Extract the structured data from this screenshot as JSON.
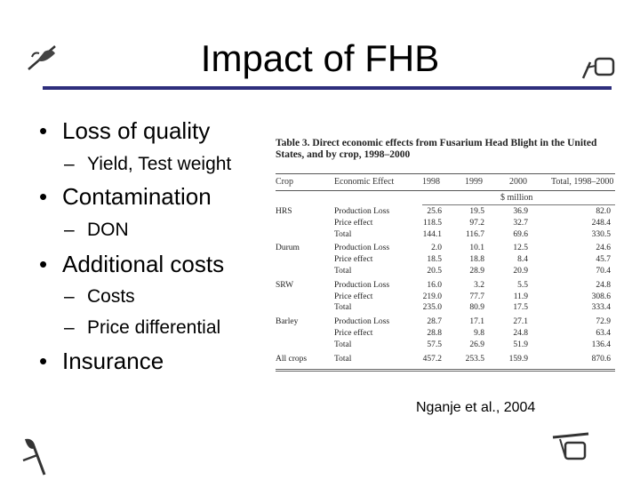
{
  "title": "Impact of FHB",
  "bullets": [
    {
      "text": "Loss of quality",
      "subs": [
        "Yield, Test weight"
      ]
    },
    {
      "text": "Contamination",
      "subs": [
        "DON"
      ]
    },
    {
      "text": "Additional costs",
      "subs": [
        "Costs",
        "Price differential"
      ]
    },
    {
      "text": "Insurance",
      "subs": []
    }
  ],
  "bullet_glyph": "•",
  "dash_glyph": "–",
  "table": {
    "caption": "Table 3. Direct economic effects from Fusarium Head Blight in the United States, and by crop, 1998–2000",
    "headers": [
      "Crop",
      "Economic Effect",
      "1998",
      "1999",
      "2000",
      "Total, 1998–2000"
    ],
    "unit": "$ million",
    "groups": [
      {
        "crop": "HRS",
        "rows": [
          {
            "effect": "Production Loss",
            "y1998": "25.6",
            "y1999": "19.5",
            "y2000": "36.9",
            "total": "82.0"
          },
          {
            "effect": "Price effect",
            "y1998": "118.5",
            "y1999": "97.2",
            "y2000": "32.7",
            "total": "248.4"
          },
          {
            "effect": "Total",
            "y1998": "144.1",
            "y1999": "116.7",
            "y2000": "69.6",
            "total": "330.5"
          }
        ]
      },
      {
        "crop": "Durum",
        "rows": [
          {
            "effect": "Production Loss",
            "y1998": "2.0",
            "y1999": "10.1",
            "y2000": "12.5",
            "total": "24.6"
          },
          {
            "effect": "Price effect",
            "y1998": "18.5",
            "y1999": "18.8",
            "y2000": "8.4",
            "total": "45.7"
          },
          {
            "effect": "Total",
            "y1998": "20.5",
            "y1999": "28.9",
            "y2000": "20.9",
            "total": "70.4"
          }
        ]
      },
      {
        "crop": "SRW",
        "rows": [
          {
            "effect": "Production Loss",
            "y1998": "16.0",
            "y1999": "3.2",
            "y2000": "5.5",
            "total": "24.8"
          },
          {
            "effect": "Price effect",
            "y1998": "219.0",
            "y1999": "77.7",
            "y2000": "11.9",
            "total": "308.6"
          },
          {
            "effect": "Total",
            "y1998": "235.0",
            "y1999": "80.9",
            "y2000": "17.5",
            "total": "333.4"
          }
        ]
      },
      {
        "crop": "Barley",
        "rows": [
          {
            "effect": "Production Loss",
            "y1998": "28.7",
            "y1999": "17.1",
            "y2000": "27.1",
            "total": "72.9"
          },
          {
            "effect": "Price effect",
            "y1998": "28.8",
            "y1999": "9.8",
            "y2000": "24.8",
            "total": "63.4"
          },
          {
            "effect": "Total",
            "y1998": "57.5",
            "y1999": "26.9",
            "y2000": "51.9",
            "total": "136.4"
          }
        ]
      },
      {
        "crop": "All crops",
        "rows": [
          {
            "effect": "Total",
            "y1998": "457.2",
            "y1999": "253.5",
            "y2000": "159.9",
            "total": "870.6"
          }
        ]
      }
    ]
  },
  "citation": "Nganje et al., 2004",
  "decorations": [
    "wheat-sprig-icon",
    "wheat-sprig-icon",
    "wheat-sprig-icon",
    "wheat-sprig-icon"
  ]
}
